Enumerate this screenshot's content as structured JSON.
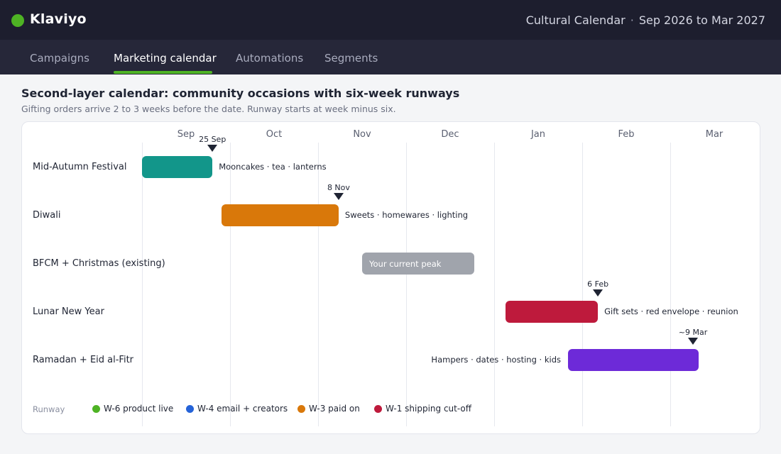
{
  "app": {
    "brand": "Klaviyo"
  },
  "header": {
    "context_title": "Cultural Calendar",
    "separator": "·",
    "date_range": "Sep 2026 to Mar 2027"
  },
  "nav": {
    "tabs": [
      {
        "label": "Campaigns",
        "active": false
      },
      {
        "label": "Marketing calendar",
        "active": true
      },
      {
        "label": "Automations",
        "active": false
      },
      {
        "label": "Segments",
        "active": false
      }
    ]
  },
  "page": {
    "title": "Second-layer calendar: community occasions with six-week runways",
    "subtitle": "Gifting orders arrive 2 to 3 weeks before the date. Runway starts at week minus six."
  },
  "colors": {
    "brand_green": "#4eb324",
    "teal": "#12968a",
    "orange": "#d9780a",
    "gray": "#a0a4ac",
    "crimson": "#be1a3c",
    "purple": "#6d2ad8",
    "blue": "#2563d8"
  },
  "timeline": {
    "months": [
      "Sep",
      "Oct",
      "Nov",
      "Dec",
      "Jan",
      "Feb",
      "Mar"
    ],
    "rows": [
      {
        "label": "Mid-Autumn Festival",
        "color": "#12968a",
        "start": "2026-08-14",
        "end": "2026-09-25",
        "note": "Mooncakes · tea · lanterns",
        "note_side": "right",
        "inner_label": "",
        "event_label": "25 Sep",
        "event_date": "2026-09-25"
      },
      {
        "label": "Diwali",
        "color": "#d9780a",
        "start": "2026-09-28",
        "end": "2026-11-08",
        "note": "Sweets · homewares · lighting",
        "note_side": "right",
        "inner_label": "",
        "event_label": "8 Nov",
        "event_date": "2026-11-08"
      },
      {
        "label": "BFCM + Christmas (existing)",
        "color": "#a0a4ac",
        "start": "2026-11-16",
        "end": "2026-12-25",
        "note": "",
        "note_side": "right",
        "inner_label": "Your current peak",
        "event_label": "",
        "event_date": ""
      },
      {
        "label": "Lunar New Year",
        "color": "#be1a3c",
        "start": "2027-01-05",
        "end": "2027-02-06",
        "note": "Gift sets · red envelope · reunion",
        "note_side": "right",
        "inner_label": "",
        "event_label": "6 Feb",
        "event_date": "2027-02-06"
      },
      {
        "label": "Ramadan + Eid al-Fitr",
        "color": "#6d2ad8",
        "start": "2027-01-27",
        "end": "2027-03-11",
        "note": "Hampers · dates · hosting · kids",
        "note_side": "left",
        "inner_label": "",
        "event_label": "~9 Mar",
        "event_date": "2027-03-09"
      }
    ]
  },
  "legend": {
    "title": "Runway",
    "items": [
      {
        "label": "W-6 product live",
        "color": "#4eb324"
      },
      {
        "label": "W-4 email + creators",
        "color": "#2563d8"
      },
      {
        "label": "W-3 paid on",
        "color": "#d9780a"
      },
      {
        "label": "W-1 shipping cut-off",
        "color": "#be1a3c"
      }
    ]
  }
}
